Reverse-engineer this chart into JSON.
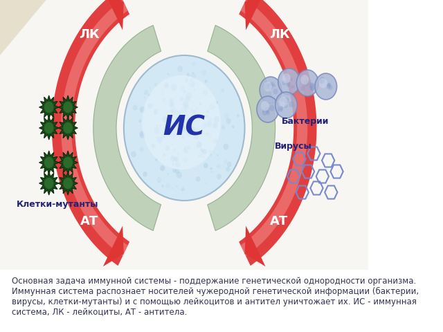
{
  "bg_color": "#ffffff",
  "slide_bg": "#f5f0e8",
  "caption_lines": [
    "Основная задача иммунной системы - поддержание генетической однородности организма.",
    "Иммунная система распознает носителей чужеродной генетической информации (бактерии,",
    "вирусы, клетки-мутанты) и с помощью лейкоцитов и антител уничтожает их. ИС - иммунная",
    "система, ЛК - лейкоциты, АТ - антитела."
  ],
  "caption_color": "#333355",
  "caption_fontsize": 8.5,
  "is_text": "ИС",
  "is_color": "#2233aa",
  "is_fontsize": 28,
  "green_color": "#b8ccb0",
  "green_edge": "#8aaa88",
  "red_color": "#e83030",
  "red_light": "#f08080",
  "label_color": "#2233aa",
  "label_fontsize": 13
}
